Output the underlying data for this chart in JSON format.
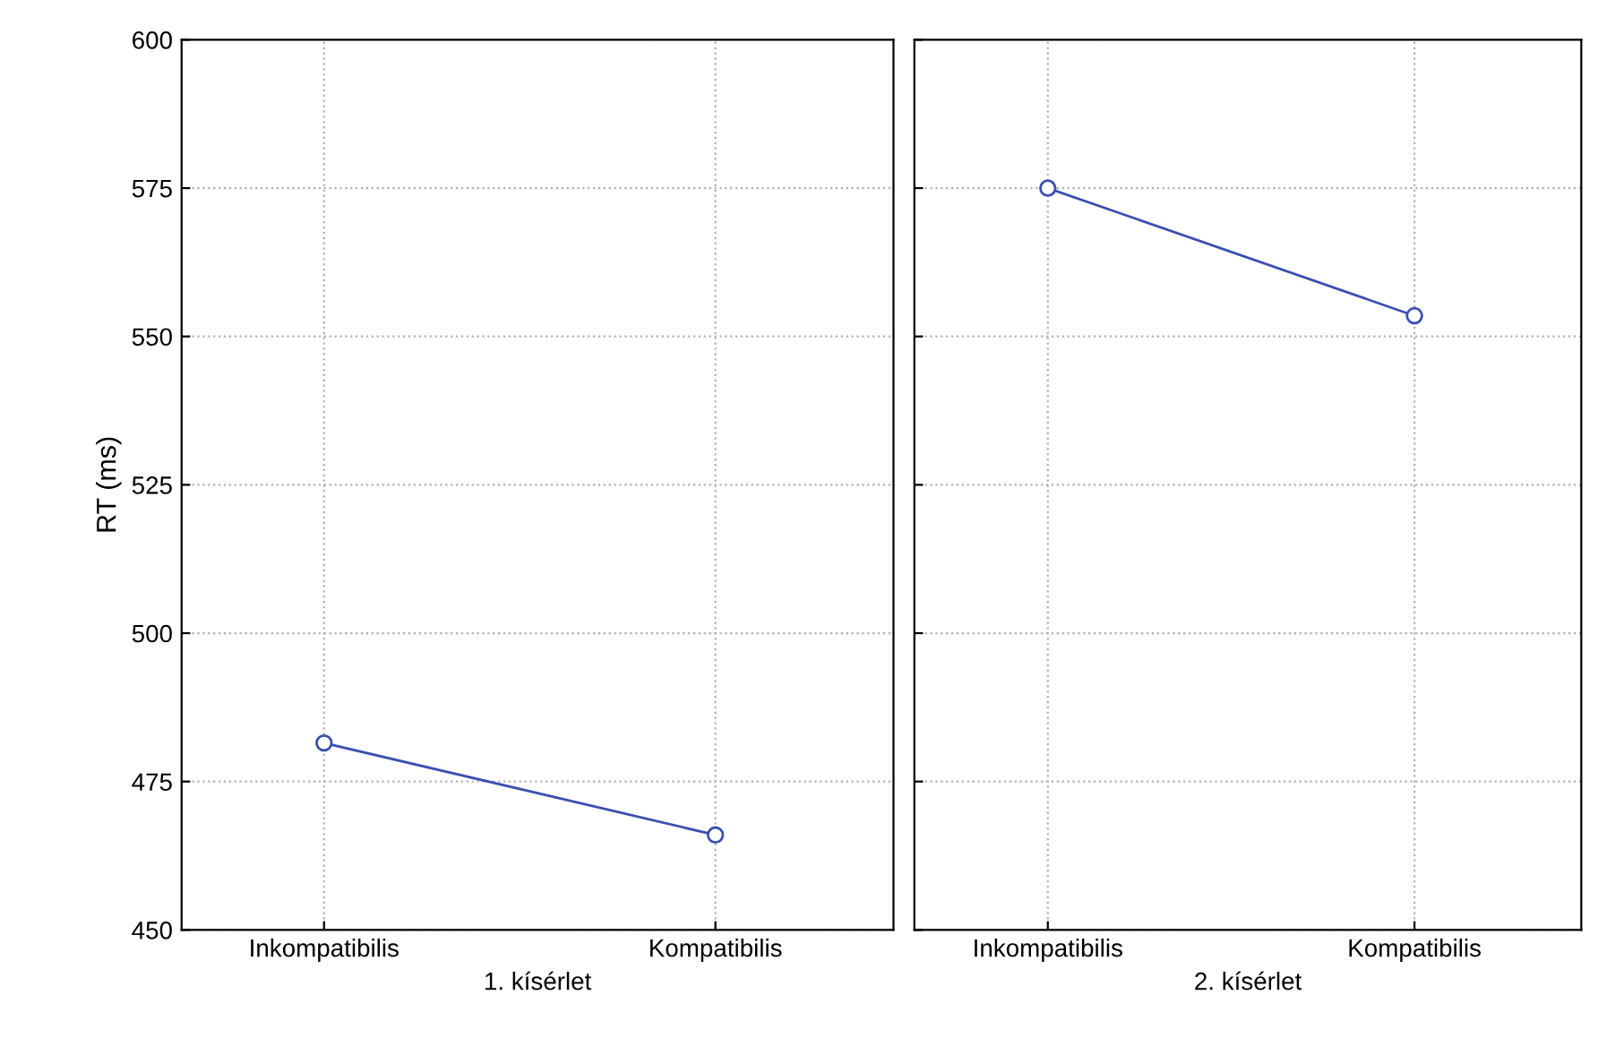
{
  "chart_data": [
    {
      "type": "line",
      "xlabel": "1. kísérlet",
      "ylabel": "RT (ms)",
      "categories": [
        "Inkompatibilis",
        "Kompatibilis"
      ],
      "series": [
        {
          "color": "#3a4fb0",
          "values": [
            481.5,
            466
          ]
        }
      ],
      "ylim": [
        450,
        600
      ],
      "yticks": [
        450,
        475,
        500,
        525,
        550,
        575,
        600
      ],
      "grid": true,
      "marker": "circle",
      "line_style": "solid"
    },
    {
      "type": "line",
      "xlabel": "2. kísérlet",
      "categories": [
        "Inkompatibilis",
        "Kompatibilis"
      ],
      "series": [
        {
          "color": "#3a4fb0",
          "values": [
            575,
            553.5
          ]
        }
      ],
      "ylim": [
        450,
        600
      ],
      "yticks": [
        450,
        475,
        500,
        525,
        550,
        575,
        600
      ],
      "grid": true,
      "marker": "circle",
      "line_style": "solid",
      "tick_labels": "x"
    }
  ]
}
